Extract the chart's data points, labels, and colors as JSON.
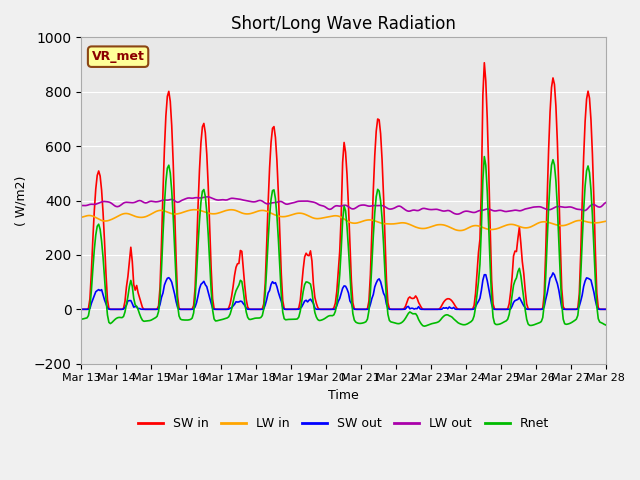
{
  "title": "Short/Long Wave Radiation",
  "ylabel": "( W/m2)",
  "xlabel": "Time",
  "annotation": "VR_met",
  "ylim": [
    -200,
    1000
  ],
  "xlim": [
    0,
    360
  ],
  "x_tick_labels": [
    "Mar 13",
    "Mar 14",
    "Mar 15",
    "Mar 16",
    "Mar 17",
    "Mar 18",
    "Mar 19",
    "Mar 20",
    "Mar 21",
    "Mar 22",
    "Mar 23",
    "Mar 24",
    "Mar 25",
    "Mar 26",
    "Mar 27",
    "Mar 28"
  ],
  "bg_color": "#e8e8e8",
  "fig_color": "#f0f0f0",
  "legend_entries": [
    "SW in",
    "LW in",
    "SW out",
    "LW out",
    "Rnet"
  ],
  "legend_colors": [
    "#ff0000",
    "#ffa500",
    "#0000ff",
    "#aa00aa",
    "#00bb00"
  ],
  "line_widths": [
    1.2,
    1.2,
    1.2,
    1.2,
    1.2
  ],
  "num_points": 360
}
